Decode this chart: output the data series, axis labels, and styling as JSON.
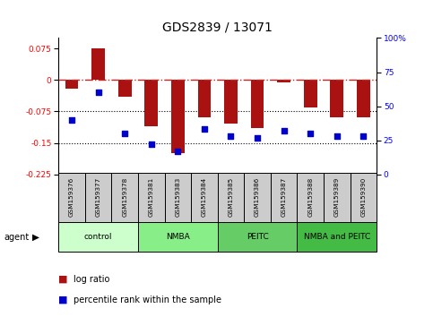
{
  "title": "GDS2839 / 13071",
  "samples": [
    "GSM159376",
    "GSM159377",
    "GSM159378",
    "GSM159381",
    "GSM159383",
    "GSM159384",
    "GSM159385",
    "GSM159386",
    "GSM159387",
    "GSM159388",
    "GSM159389",
    "GSM159390"
  ],
  "log_ratio": [
    -0.02,
    0.075,
    -0.04,
    -0.11,
    -0.175,
    -0.09,
    -0.105,
    -0.115,
    -0.005,
    -0.065,
    -0.09,
    -0.09
  ],
  "percentile_rank": [
    40,
    60,
    30,
    22,
    17,
    33,
    28,
    27,
    32,
    30,
    28,
    28
  ],
  "bar_color": "#aa1111",
  "dot_color": "#0000cc",
  "hline_color": "#cc2222",
  "dotted_line_color": "black",
  "ylim_left": [
    -0.225,
    0.1
  ],
  "ylim_right": [
    0,
    100
  ],
  "yticks_left": [
    0.075,
    0,
    -0.075,
    -0.15,
    -0.225
  ],
  "yticks_right": [
    0,
    25,
    50,
    75,
    100
  ],
  "groups": [
    {
      "label": "control",
      "start": 0,
      "end": 3,
      "color": "#ccffcc"
    },
    {
      "label": "NMBA",
      "start": 3,
      "end": 6,
      "color": "#88ee88"
    },
    {
      "label": "PEITC",
      "start": 6,
      "end": 9,
      "color": "#66cc66"
    },
    {
      "label": "NMBA and PEITC",
      "start": 9,
      "end": 12,
      "color": "#44bb44"
    }
  ],
  "agent_label": "agent",
  "legend_red": "log ratio",
  "legend_blue": "percentile rank within the sample",
  "bar_width": 0.5,
  "sample_bg": "#cccccc"
}
